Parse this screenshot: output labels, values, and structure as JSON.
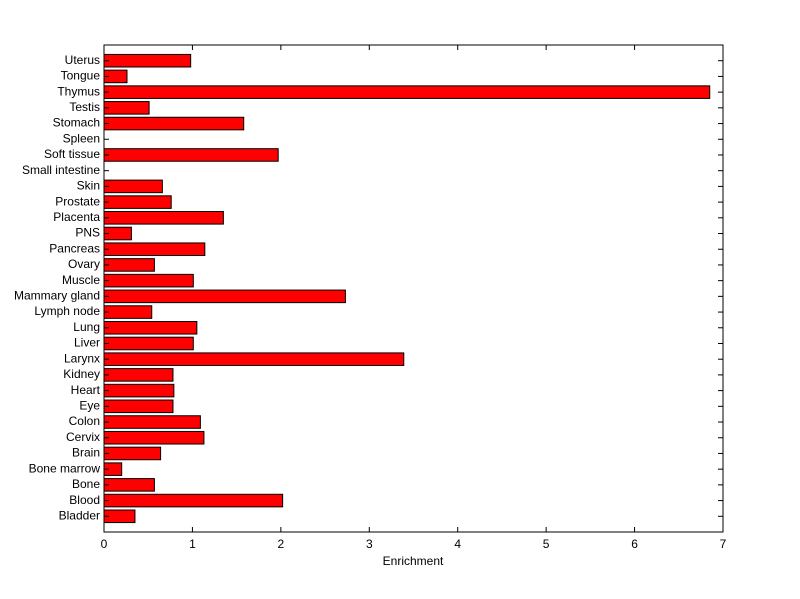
{
  "chart_data": {
    "type": "barh",
    "categories": [
      "Bladder",
      "Blood",
      "Bone",
      "Bone marrow",
      "Brain",
      "Cervix",
      "Colon",
      "Eye",
      "Heart",
      "Kidney",
      "Larynx",
      "Liver",
      "Lung",
      "Lymph node",
      "Mammary gland",
      "Muscle",
      "Ovary",
      "Pancreas",
      "PNS",
      "Placenta",
      "Prostate",
      "Skin",
      "Small intestine",
      "Soft tissue",
      "Spleen",
      "Stomach",
      "Testis",
      "Thymus",
      "Tongue",
      "Uterus"
    ],
    "values": [
      0.35,
      2.02,
      0.57,
      0.2,
      0.64,
      1.13,
      1.09,
      0.78,
      0.79,
      0.78,
      3.39,
      1.01,
      1.05,
      0.54,
      2.73,
      1.01,
      0.57,
      1.14,
      0.31,
      1.35,
      0.76,
      0.66,
      0,
      1.97,
      0,
      1.58,
      0.51,
      6.85,
      0.26,
      0.98
    ],
    "color": "#ff0000",
    "xlabel": "Enrichment",
    "xlim": [
      0,
      7
    ],
    "xticks": [
      0,
      1,
      2,
      3,
      4,
      5,
      6,
      7
    ]
  }
}
